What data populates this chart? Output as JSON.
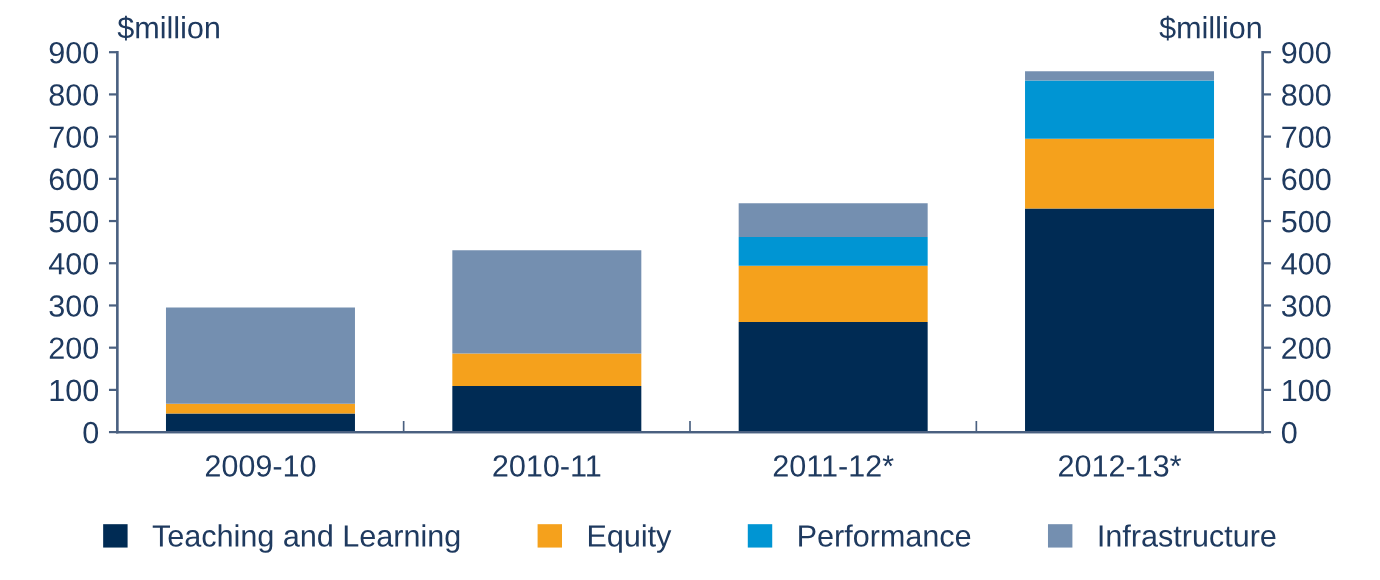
{
  "chart_data": {
    "type": "bar",
    "stacked": true,
    "categories": [
      "2009-10",
      "2010-11",
      "2011-12*",
      "2012-13*"
    ],
    "series": [
      {
        "name": "Teaching and Learning",
        "color": "#002b54",
        "values": [
          44,
          109,
          261,
          530
        ]
      },
      {
        "name": "Equity",
        "color": "#f5a11c",
        "values": [
          23,
          77,
          133,
          165
        ]
      },
      {
        "name": "Performance",
        "color": "#0095d3",
        "values": [
          null,
          null,
          68,
          138
        ]
      },
      {
        "name": "Infrastructure",
        "color": "#748fb0",
        "values": [
          228,
          245,
          80,
          22
        ]
      }
    ],
    "ylabel": "$million",
    "y2label": "$million",
    "ylim": [
      0,
      900
    ],
    "yticks": [
      0,
      100,
      200,
      300,
      400,
      500,
      600,
      700,
      800,
      900
    ],
    "y2lim": [
      0,
      900
    ],
    "y2ticks": [
      0,
      100,
      200,
      300,
      400,
      500,
      600,
      700,
      800,
      900
    ],
    "grid": false,
    "legend": "bottom"
  }
}
